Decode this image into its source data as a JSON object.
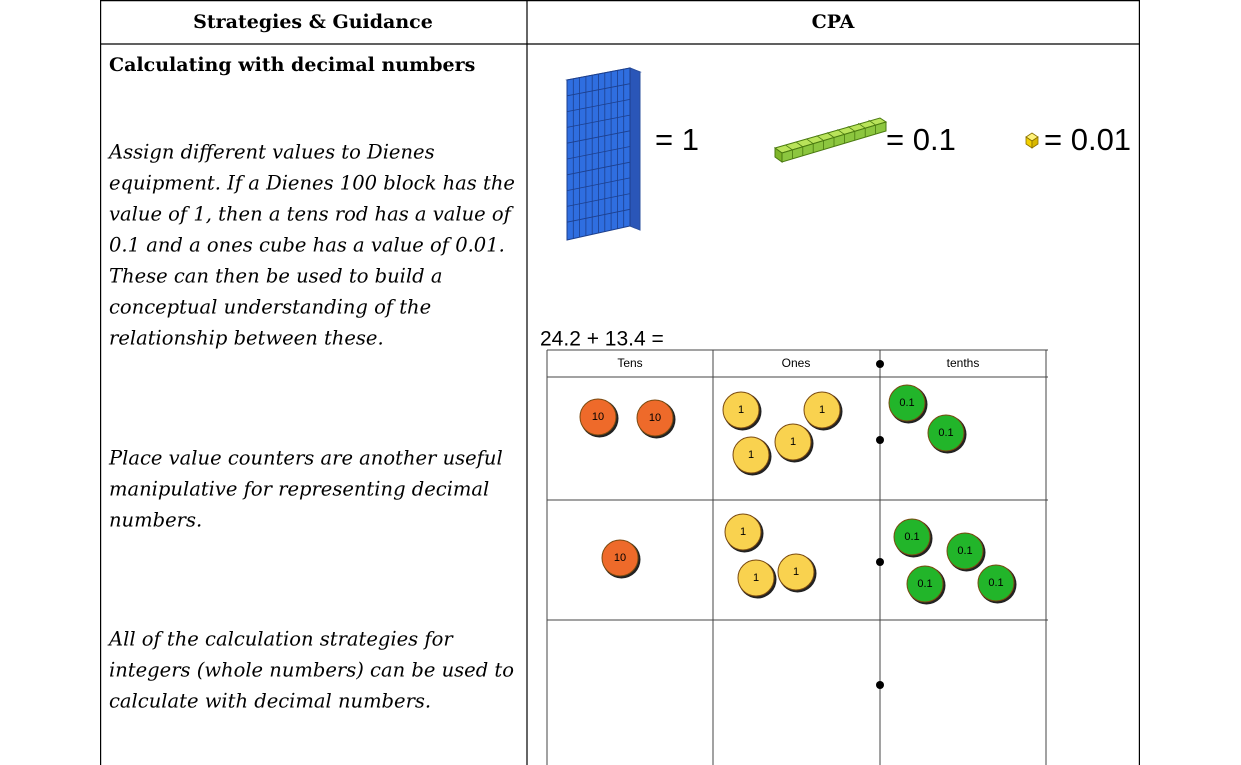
{
  "header": {
    "left": "Strategies & Guidance",
    "right": "CPA"
  },
  "left": {
    "heading": "Calculating with decimal numbers",
    "paragraphs": [
      [
        "Assign different values to Dienes",
        "equipment. If a Dienes 100 block has the",
        "value of 1, then a tens rod has a value of",
        "0.1 and a ones cube has a value of 0.01.",
        "These can then be used to build a",
        "conceptual understanding of the",
        "relationship between these."
      ],
      [
        "Place value counters are another useful",
        "manipulative for representing decimal",
        "numbers."
      ],
      [
        "All of the calculation strategies for",
        "integers (whole numbers) can be used to",
        "calculate with decimal numbers."
      ]
    ]
  },
  "right": {
    "dienes": [
      "= 1",
      "= 0.1",
      "= 0.01"
    ],
    "calculation": "24.2 + 13.4 =",
    "chart": {
      "columns": [
        "Tens",
        "Ones",
        "tenths"
      ],
      "rows": [
        [
          [
            "10",
            "10"
          ],
          [
            "1",
            "1",
            "1",
            "1"
          ],
          [
            "0.1",
            "0.1"
          ]
        ],
        [
          [
            "10"
          ],
          [
            "1",
            "1",
            "1"
          ],
          [
            "0.1",
            "0.1",
            "0.1",
            "0.1"
          ]
        ],
        [
          [],
          [],
          []
        ]
      ]
    }
  }
}
